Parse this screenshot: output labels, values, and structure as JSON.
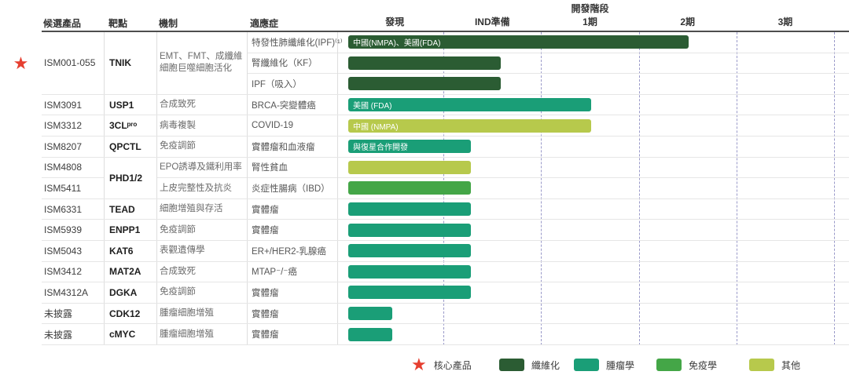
{
  "header": {
    "dev_stage_title": "開發階段",
    "left_columns": [
      "候選產品",
      "靶點",
      "機制",
      "適應症"
    ],
    "stages": [
      "發現",
      "IND準備",
      "1期",
      "2期",
      "3期"
    ]
  },
  "colors": {
    "fibrosis": "#2b5c33",
    "oncology": "#1a9e77",
    "immunology": "#44a647",
    "other": "#b7c94c",
    "core_star": "#e63f30",
    "gridline": "#9a9ac9"
  },
  "chart_data": {
    "type": "bar",
    "title": "開發階段",
    "x_axis": {
      "labels": [
        "發現",
        "IND準備",
        "1期",
        "2期",
        "3期"
      ],
      "range": [
        0,
        5
      ]
    },
    "groups": [
      {
        "star": true,
        "product": "ISM001-055",
        "target": "TNIK",
        "mechanism": "EMT、FMT、成纖維細胞巨噬細胞活化",
        "rows": [
          {
            "indication": "特發性肺纖維化(IPF)⁽¹⁾",
            "bar": {
              "category": "fibrosis",
              "stage_end": 3.53,
              "label": "中國(NMPA)、美國(FDA)"
            }
          },
          {
            "indication": "腎纖維化（KF）",
            "bar": {
              "category": "fibrosis",
              "stage_end": 1.6
            }
          },
          {
            "indication": "IPF（吸入）",
            "bar": {
              "category": "fibrosis",
              "stage_end": 1.6
            }
          }
        ]
      },
      {
        "star": false,
        "product": "ISM3091",
        "target": "USP1",
        "mechanism": "合成致死",
        "rows": [
          {
            "indication": "BRCA-突變體癌",
            "bar": {
              "category": "oncology",
              "stage_end": 2.53,
              "label": "美國 (FDA)"
            }
          }
        ]
      },
      {
        "star": false,
        "product": "ISM3312",
        "target": "3CLᵖʳᵒ",
        "mechanism": "病毒複製",
        "rows": [
          {
            "indication": "COVID-19",
            "bar": {
              "category": "other",
              "stage_end": 2.53,
              "label": "中國 (NMPA)"
            }
          }
        ]
      },
      {
        "star": false,
        "product": "ISM8207",
        "target": "QPCTL",
        "mechanism": "免疫調節",
        "rows": [
          {
            "indication": "實體瘤和血液瘤",
            "bar": {
              "category": "oncology",
              "stage_end": 1.3,
              "label": "與復星合作開發"
            }
          }
        ]
      },
      {
        "star": false,
        "product": null,
        "target": "PHD1/2",
        "mechanism": null,
        "rows": [
          {
            "product": "ISM4808",
            "mechanism": "EPO誘導及鐵利用率",
            "indication": "腎性貧血",
            "bar": {
              "category": "other",
              "stage_end": 1.3
            }
          },
          {
            "product": "ISM5411",
            "mechanism": "上皮完整性及抗炎",
            "indication": "炎症性腸病（IBD）",
            "bar": {
              "category": "immunology",
              "stage_end": 1.3
            }
          }
        ]
      },
      {
        "star": false,
        "product": "ISM6331",
        "target": "TEAD",
        "mechanism": "細胞增殖與存活",
        "rows": [
          {
            "indication": "實體瘤",
            "bar": {
              "category": "oncology",
              "stage_end": 1.3
            }
          }
        ]
      },
      {
        "star": false,
        "product": "ISM5939",
        "target": "ENPP1",
        "mechanism": "免疫調節",
        "rows": [
          {
            "indication": "實體瘤",
            "bar": {
              "category": "oncology",
              "stage_end": 1.3
            }
          }
        ]
      },
      {
        "star": false,
        "product": "ISM5043",
        "target": "KAT6",
        "mechanism": "表觀遺傳學",
        "rows": [
          {
            "indication": "ER+/HER2-乳腺癌",
            "bar": {
              "category": "oncology",
              "stage_end": 1.3
            }
          }
        ]
      },
      {
        "star": false,
        "product": "ISM3412",
        "target": "MAT2A",
        "mechanism": "合成致死",
        "rows": [
          {
            "indication": "MTAP⁻/⁻癌",
            "bar": {
              "category": "oncology",
              "stage_end": 1.3
            }
          }
        ]
      },
      {
        "star": false,
        "product": "ISM4312A",
        "target": "DGKA",
        "mechanism": "免疫調節",
        "rows": [
          {
            "indication": "實體瘤",
            "bar": {
              "category": "oncology",
              "stage_end": 1.3
            }
          }
        ]
      },
      {
        "star": false,
        "product": "未披露",
        "target": "CDK12",
        "mechanism": "腫瘤細胞增殖",
        "rows": [
          {
            "indication": "實體瘤",
            "bar": {
              "category": "oncology",
              "stage_end": 0.49
            }
          }
        ]
      },
      {
        "star": false,
        "product": "未披露",
        "target": "cMYC",
        "mechanism": "腫瘤細胞增殖",
        "rows": [
          {
            "indication": "實體瘤",
            "bar": {
              "category": "oncology",
              "stage_end": 0.49
            }
          }
        ]
      }
    ]
  },
  "legend": {
    "core_label": "核心產品",
    "items": [
      {
        "label": "纖維化",
        "category": "fibrosis"
      },
      {
        "label": "腫瘤學",
        "category": "oncology"
      },
      {
        "label": "免疫學",
        "category": "immunology"
      },
      {
        "label": "其他",
        "category": "other"
      }
    ]
  }
}
